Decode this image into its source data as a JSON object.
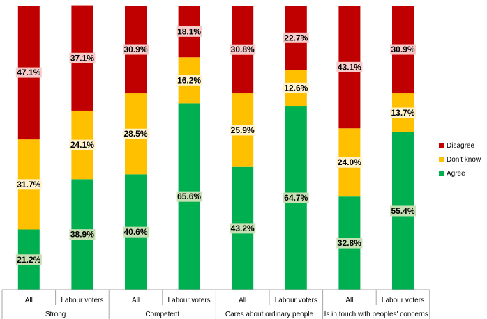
{
  "chart_data": {
    "type": "bar",
    "stacked": true,
    "percent": true,
    "groups": [
      {
        "label": "Strong",
        "categories": [
          "All",
          "Labour voters"
        ]
      },
      {
        "label": "Competent",
        "categories": [
          "All",
          "Labour voters"
        ]
      },
      {
        "label": "Cares about ordinary people",
        "categories": [
          "All",
          "Labour voters"
        ]
      },
      {
        "label": "Is in touch with peoples' concerns",
        "categories": [
          "All",
          "Labour voters"
        ]
      }
    ],
    "categories": [
      "All",
      "Labour voters",
      "All",
      "Labour voters",
      "All",
      "Labour voters",
      "All",
      "Labour voters"
    ],
    "series": [
      {
        "name": "Agree",
        "color": "#00b050",
        "label_bg": "#c6e0b4",
        "values": [
          21.2,
          38.9,
          40.6,
          65.6,
          43.2,
          64.7,
          32.8,
          55.4
        ],
        "labels": [
          "21.2%",
          "38.9%",
          "40.6%",
          "65.6%",
          "43.2%",
          "64.7%",
          "32.8%",
          "55.4%"
        ]
      },
      {
        "name": "Don't know",
        "color": "#ffc000",
        "label_bg": "#fff2cc",
        "values": [
          31.7,
          24.1,
          28.5,
          16.2,
          25.9,
          12.6,
          24.0,
          13.7
        ],
        "labels": [
          "31.7%",
          "24.1%",
          "28.5%",
          "16.2%",
          "25.9%",
          "12.6%",
          "24.0%",
          "13.7%"
        ]
      },
      {
        "name": "Disagree",
        "color": "#c00000",
        "label_bg": "#f8cbcb",
        "values": [
          47.1,
          37.1,
          30.9,
          18.1,
          30.8,
          22.7,
          43.1,
          30.9
        ],
        "labels": [
          "47.1%",
          "37.1%",
          "30.9%",
          "18.1%",
          "30.8%",
          "22.7%",
          "43.1%",
          "30.9%"
        ]
      }
    ],
    "legend": {
      "placement": "right",
      "order": [
        "Disagree",
        "Don't know",
        "Agree"
      ]
    },
    "ylim": [
      0,
      100
    ],
    "grid": false
  }
}
